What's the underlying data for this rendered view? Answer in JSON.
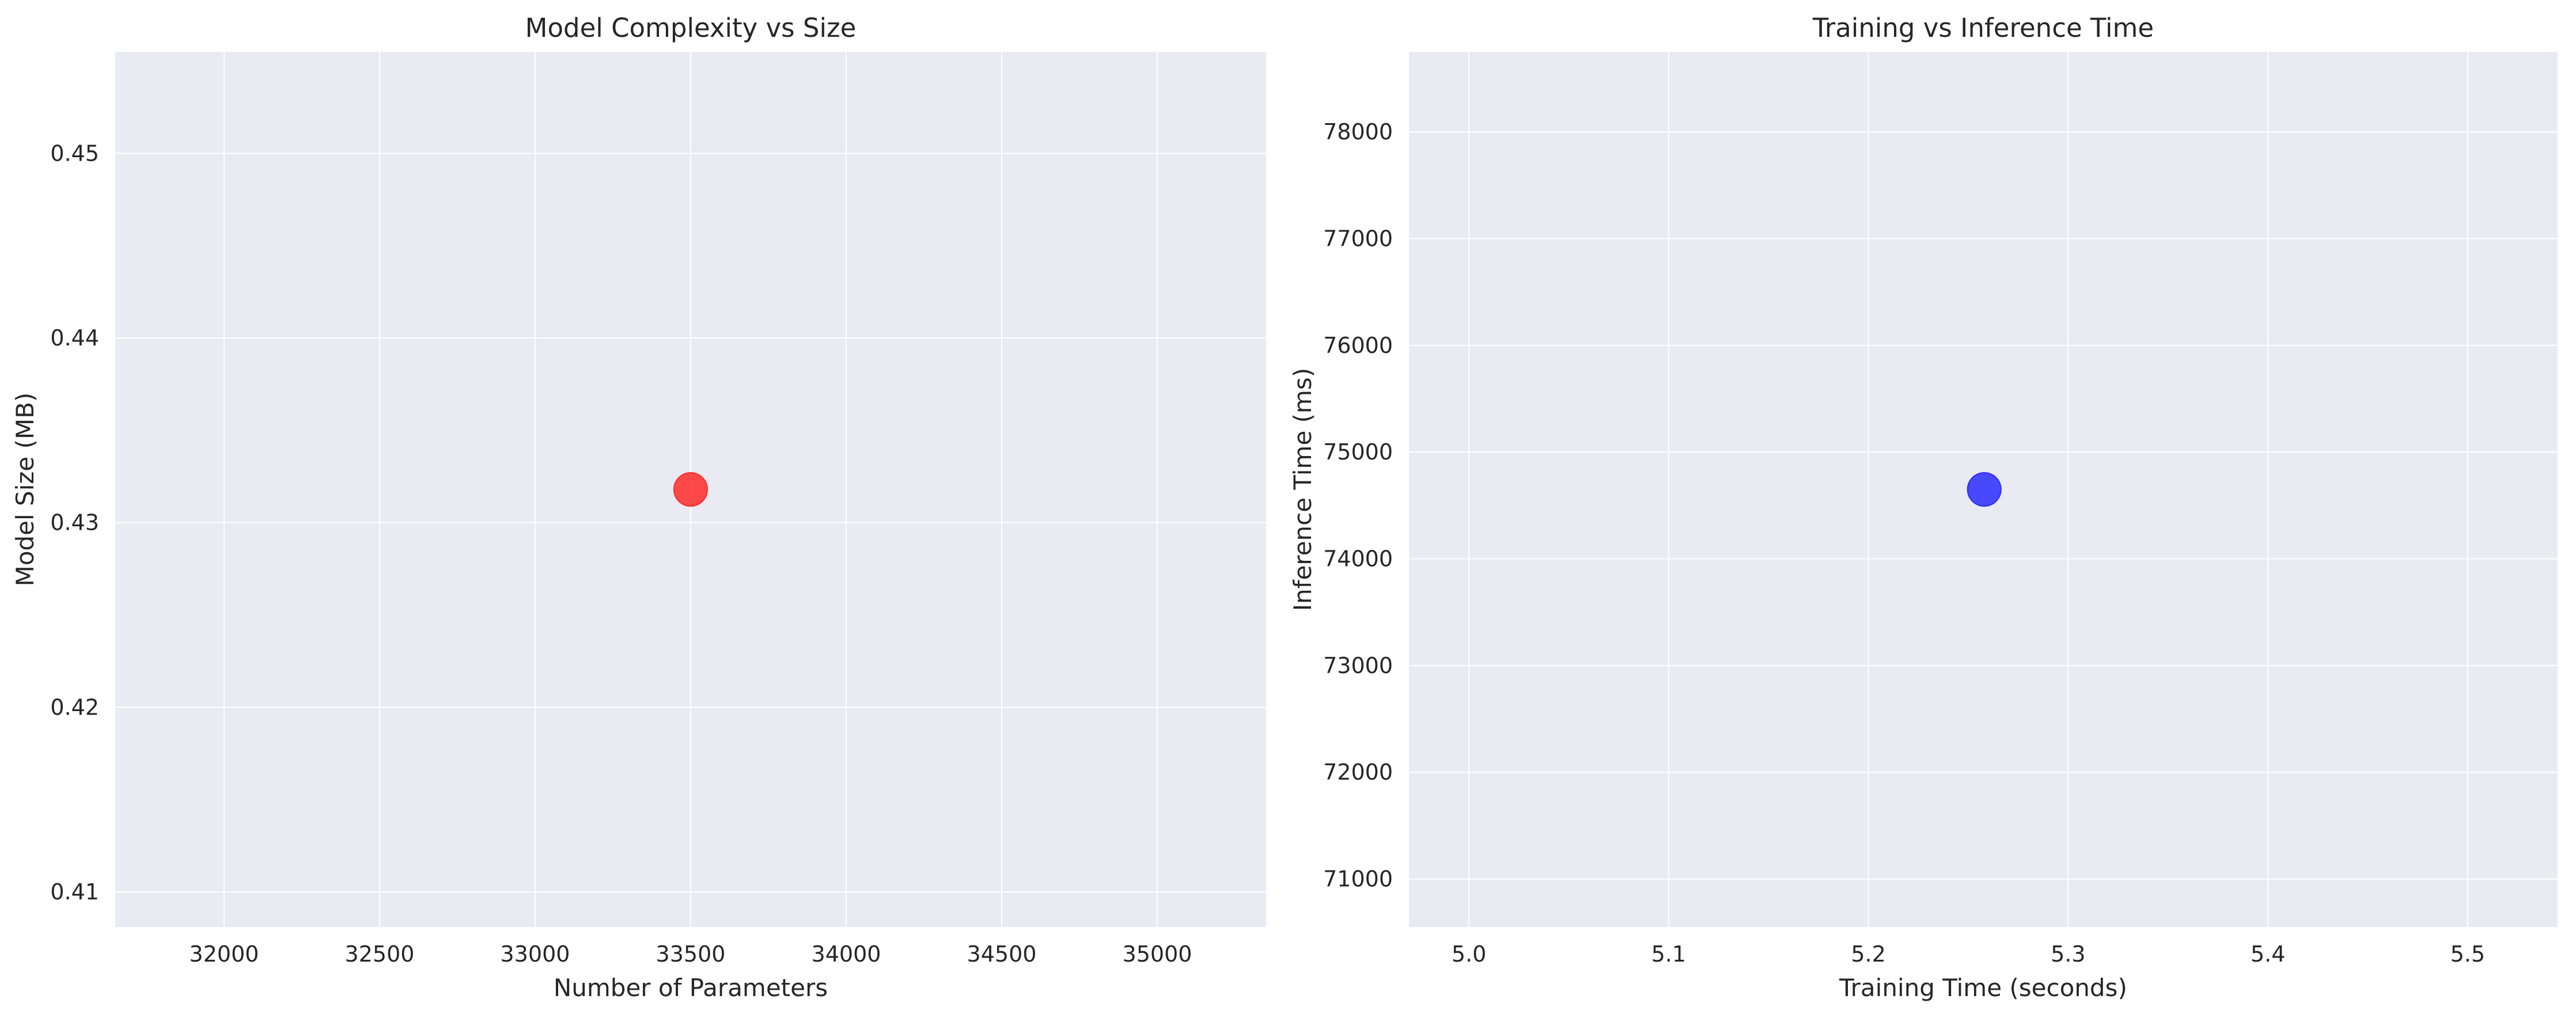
{
  "chart_data": [
    {
      "type": "scatter",
      "title": "Model Complexity vs Size",
      "xlabel": "Number of Parameters",
      "ylabel": "Model Size (MB)",
      "xlim": [
        31650,
        35350
      ],
      "ylim": [
        0.4081,
        0.4555
      ],
      "xticks": [
        32000,
        32500,
        33000,
        33500,
        34000,
        34500,
        35000
      ],
      "yticks": [
        0.41,
        0.42,
        0.43,
        0.44,
        0.45
      ],
      "grid": true,
      "background": "#eaeaf2",
      "points": [
        {
          "x": 33500,
          "y": 0.4318,
          "color": "#ff2b2b"
        }
      ]
    },
    {
      "type": "scatter",
      "title": "Training vs Inference Time",
      "xlabel": "Training Time (seconds)",
      "ylabel": "Inference Time (ms)",
      "xlim": [
        4.97,
        5.545
      ],
      "ylim": [
        70550,
        78750
      ],
      "xticks": [
        5.0,
        5.1,
        5.2,
        5.3,
        5.4,
        5.5
      ],
      "yticks": [
        71000,
        72000,
        73000,
        74000,
        75000,
        76000,
        77000,
        78000
      ],
      "grid": true,
      "background": "#eaeaf2",
      "points": [
        {
          "x": 5.258,
          "y": 74650,
          "color": "#2b2bff"
        }
      ]
    }
  ]
}
